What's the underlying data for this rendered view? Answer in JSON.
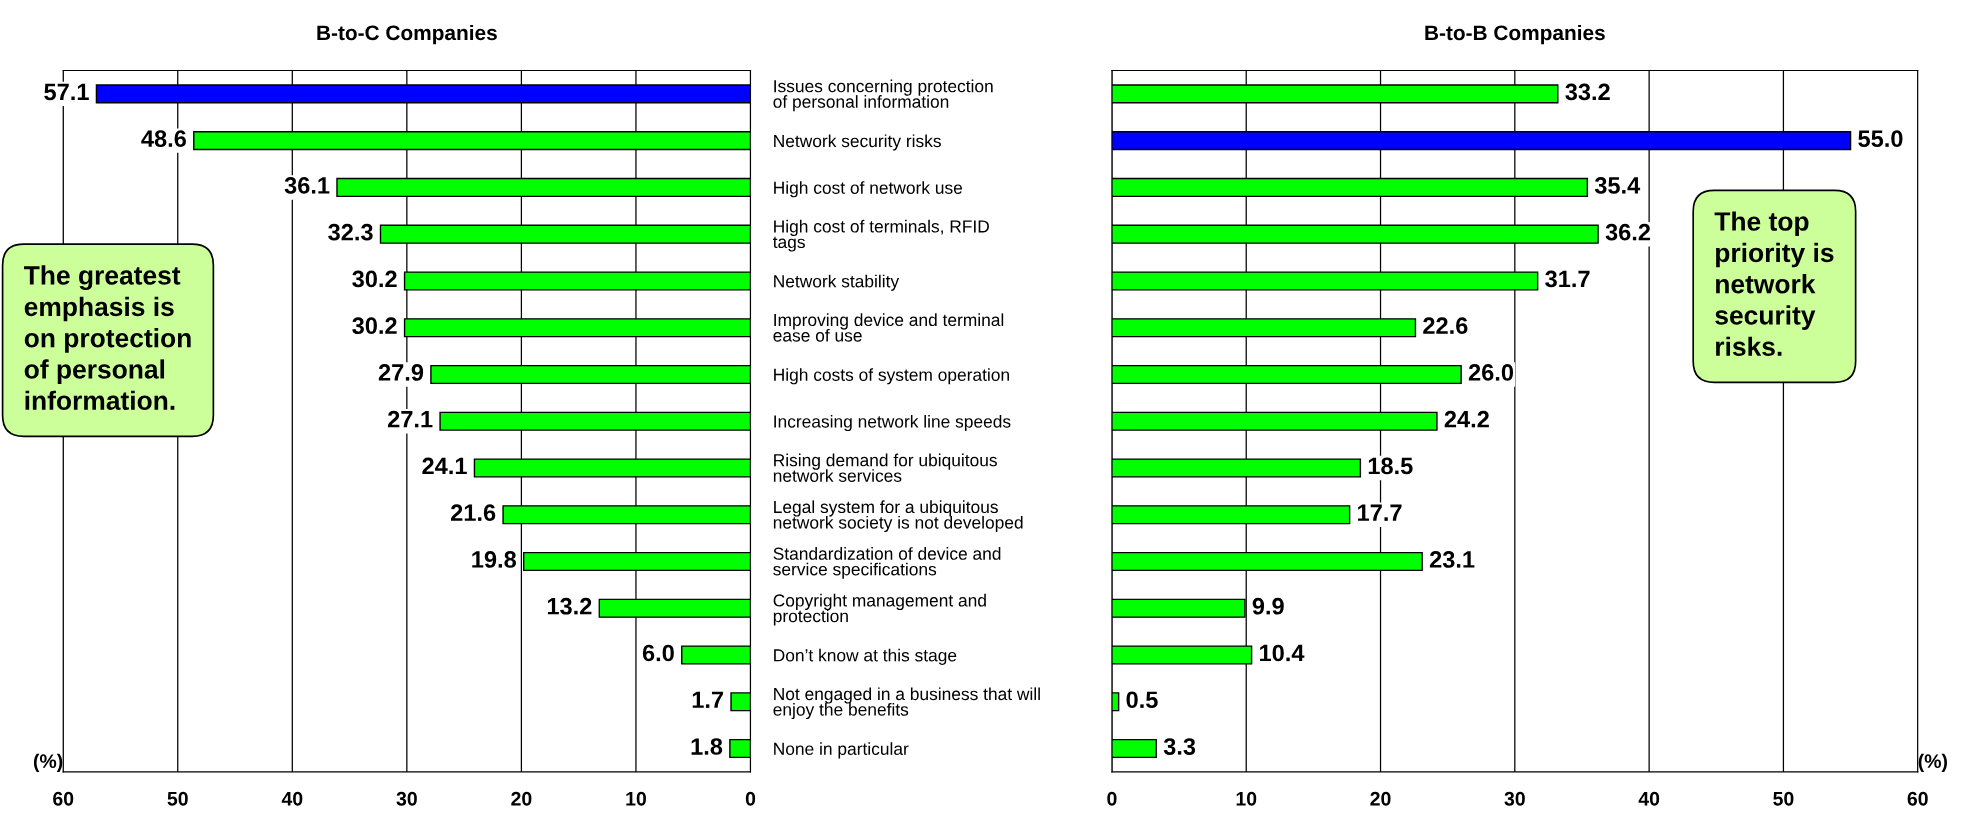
{
  "chart_data": [
    {
      "type": "bar",
      "orientation": "horizontal",
      "title": "B-to-C Companies",
      "xlabel": "(%)",
      "categories": [
        "Issues concerning protection\nof personal information",
        "Network security risks",
        "High cost of network use",
        "High cost of terminals, RFID\ntags",
        "Network stability",
        "Improving device and terminal\nease of use",
        "High costs of system operation",
        "Increasing network line speeds",
        "Rising demand for ubiquitous\nnetwork services",
        "Legal system for a ubiquitous\nnetwork society is not developed",
        "Standardization of device and\nservice specifications",
        "Copyright management and\nprotection",
        "Don’t know at this stage",
        "Not engaged in a business that will\nenjoy the benefits",
        "None in particular"
      ],
      "values": [
        57.1,
        48.6,
        36.1,
        32.3,
        30.2,
        30.2,
        27.9,
        27.1,
        24.1,
        21.6,
        19.8,
        13.2,
        6.0,
        1.7,
        1.8
      ],
      "value_labels": [
        "57.1",
        "48.6",
        "36.1",
        "32.3",
        "30.2",
        "30.2",
        "27.9",
        "27.1",
        "24.1",
        "21.6",
        "19.8",
        "13.2",
        "6.0",
        "1.7",
        "1.8"
      ],
      "colors": [
        "#0000ff",
        "#00ff00",
        "#00ff00",
        "#00ff00",
        "#00ff00",
        "#00ff00",
        "#00ff00",
        "#00ff00",
        "#00ff00",
        "#00ff00",
        "#00ff00",
        "#00ff00",
        "#00ff00",
        "#00ff00",
        "#00ff00"
      ],
      "xlim": [
        60,
        0
      ],
      "xticks": [
        60,
        50,
        40,
        30,
        20,
        10,
        0
      ],
      "grid": "x",
      "annotations": [
        "The greatest\nemphasis is\non protection\nof personal\ninformation."
      ]
    },
    {
      "type": "bar",
      "orientation": "horizontal",
      "title": "B-to-B Companies",
      "xlabel": "(%)",
      "categories": [
        null,
        null,
        null,
        null,
        null,
        null,
        null,
        null,
        null,
        null,
        null,
        null,
        null,
        null,
        null
      ],
      "values": [
        33.2,
        55.0,
        35.4,
        36.2,
        31.7,
        22.6,
        26.0,
        24.2,
        18.5,
        17.7,
        23.1,
        9.9,
        10.4,
        0.5,
        3.3
      ],
      "value_labels": [
        "33.2",
        "55.0",
        "35.4",
        "36.2",
        "31.7",
        "22.6",
        "26.0",
        "24.2",
        "18.5",
        "17.7",
        "23.1",
        "9.9",
        "10.4",
        "0.5",
        "3.3"
      ],
      "colors": [
        "#00ff00",
        "#0000ff",
        "#00ff00",
        "#00ff00",
        "#00ff00",
        "#00ff00",
        "#00ff00",
        "#00ff00",
        "#00ff00",
        "#00ff00",
        "#00ff00",
        "#00ff00",
        "#00ff00",
        "#00ff00",
        "#00ff00"
      ],
      "xlim": [
        0,
        60
      ],
      "xticks": [
        0,
        10,
        20,
        30,
        40,
        50,
        60
      ],
      "grid": "x",
      "annotations": [
        "The top\npriority is\nnetwork\nsecurity\nrisks."
      ]
    }
  ]
}
